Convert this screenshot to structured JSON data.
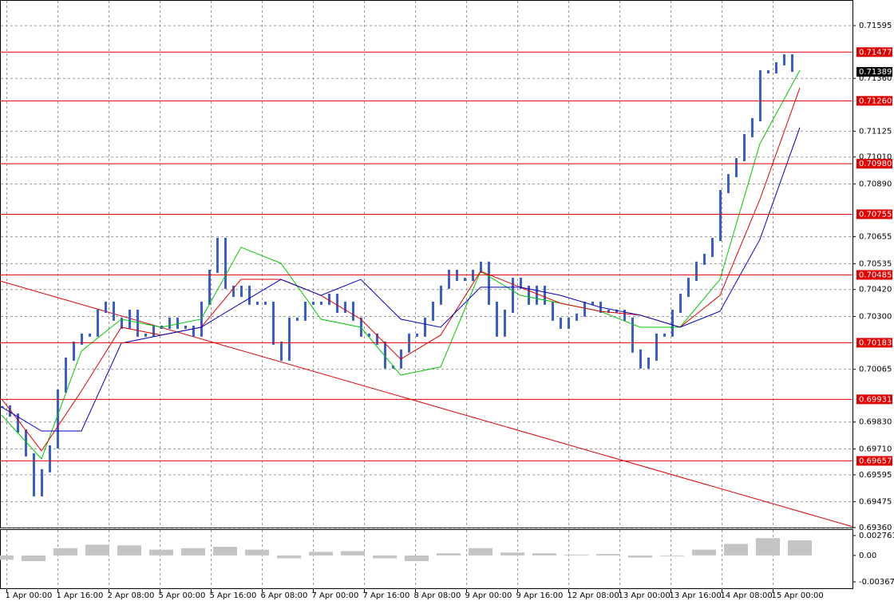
{
  "chart_data": {
    "type": "candlestick",
    "color": "#3a5fcd",
    "values": [
      0.69897,
      0.69861,
      0.6979,
      0.69684,
      0.69506,
      0.69613,
      0.69719,
      0.69968,
      0.7011,
      0.70181,
      0.70217,
      0.70217,
      0.70323,
      0.70359,
      0.70288,
      0.70252,
      0.70323,
      0.70217,
      0.70217,
      0.70252,
      0.70252,
      0.70288,
      0.70252,
      0.70252,
      0.70217,
      0.70359,
      0.70501,
      0.70643,
      0.7043,
      0.70394,
      0.7043,
      0.70359,
      0.70359,
      0.70359,
      0.70181,
      0.7011,
      0.70288,
      0.70288,
      0.70359,
      0.70359,
      0.70359,
      0.70394,
      0.70323,
      0.70359,
      0.70288,
      0.70217,
      0.70217,
      0.70181,
      0.70075,
      0.70075,
      0.70146,
      0.70217,
      0.70217,
      0.70288,
      0.70359,
      0.7043,
      0.70501,
      0.70465,
      0.70465,
      0.70501,
      0.70537,
      0.70359,
      0.70217,
      0.70323,
      0.70465,
      0.7043,
      0.70359,
      0.7043,
      0.70359,
      0.70288,
      0.70252,
      0.70288,
      0.70306,
      0.70359,
      0.70359,
      0.70323,
      0.70323,
      0.70323,
      0.70288,
      0.70146,
      0.70075,
      0.7011,
      0.70217,
      0.70217,
      0.70323,
      0.70394,
      0.70465,
      0.70537,
      0.70572,
      0.70643,
      0.70856,
      0.70927,
      0.70998,
      0.71105,
      0.71176,
      0.71389,
      0.71389,
      0.71425,
      0.7146,
      0.71396
    ],
    "moving_averages": [
      {
        "color": "#00c800",
        "values": [
          0.69861,
          0.69666,
          0.70146,
          0.70288,
          0.70252,
          0.70288,
          0.70608,
          0.70537,
          0.70288,
          0.70252,
          0.70039,
          0.70075,
          0.70501,
          0.70394,
          0.70359,
          0.70323,
          0.70252,
          0.70252,
          0.70465,
          0.71069,
          0.71396
        ]
      },
      {
        "color": "#e00000",
        "values": [
          0.69933,
          0.69702,
          0.69968,
          0.70252,
          0.70217,
          0.70252,
          0.70465,
          0.70465,
          0.70394,
          0.70288,
          0.7011,
          0.70217,
          0.70501,
          0.7043,
          0.70359,
          0.70323,
          0.70306,
          0.70252,
          0.70394,
          0.70821,
          0.71318
        ]
      },
      {
        "color": "#0000c8",
        "values": [
          0.69897,
          0.6979,
          0.6979,
          0.70181,
          0.70217,
          0.70252,
          0.70359,
          0.70465,
          0.70394,
          0.70465,
          0.70288,
          0.70252,
          0.7043,
          0.7043,
          0.70394,
          0.70341,
          0.70306,
          0.70252,
          0.70323,
          0.70643,
          0.71141
        ]
      }
    ],
    "trendline": [
      0.70458,
      0.69364
    ],
    "trendline_color": "#e00000",
    "levels": [
      0.71477,
      {
        "value": 0.7126,
        "label": "0.71260"
      },
      {
        "value": 0.7098,
        "label": "0.70980"
      },
      0.70755,
      0.70485,
      0.70183,
      0.69931,
      0.69657
    ],
    "level_color": "#e00000",
    "current_price": 0.71389,
    "ylim": [
      0.6936,
      0.71709
    ],
    "yticks": [
      0.71595,
      {
        "value": 0.7136,
        "label": "0.71360"
      },
      0.71125,
      {
        "value": 0.7101,
        "label": "0.71010"
      },
      {
        "value": 0.7089,
        "label": "0.70890"
      },
      0.70655,
      0.70535,
      {
        "value": 0.7042,
        "label": "0.70420"
      },
      {
        "value": 0.703,
        "label": "0.70300"
      },
      0.70065,
      {
        "value": 0.6983,
        "label": "0.69830"
      },
      {
        "value": 0.6971,
        "label": "0.69710"
      },
      0.69595,
      0.69475,
      {
        "value": 0.6936,
        "label": "0.69360"
      }
    ],
    "grid": true,
    "x_axis_labels": [
      "1 Apr 00:00",
      "1 Apr 16:00",
      "2 Apr 08:00",
      "5 Apr 00:00",
      "5 Apr 16:00",
      "6 Apr 08:00",
      "7 Apr 00:00",
      "7 Apr 16:00",
      "8 Apr 08:00",
      "9 Apr 00:00",
      "9 Apr 16:00",
      "12 Apr 08:00",
      "13 Apr 00:00",
      "13 Apr 16:00",
      "14 Apr 08:00",
      "15 Apr 00:00"
    ],
    "indicator": {
      "type": "bar",
      "color": "#c4c4c4",
      "values": [
        -0.0006,
        -0.0008,
        0.001,
        0.0015,
        0.0014,
        0.0008,
        0.001,
        0.0012,
        0.0008,
        -0.0004,
        0.0005,
        0.0006,
        -0.0004,
        -0.0008,
        0.0003,
        0.001,
        0.0004,
        0.0003,
        0.0001,
        0.0002,
        -0.0003,
        -0.0001,
        0.0008,
        0.0016,
        0.0024,
        0.0021
      ],
      "ylim": [
        -0.004673,
        0.003538
      ],
      "yticks": [
        0.002761,
        {
          "value": 0,
          "label": "0.00"
        },
        -0.003674
      ]
    }
  }
}
